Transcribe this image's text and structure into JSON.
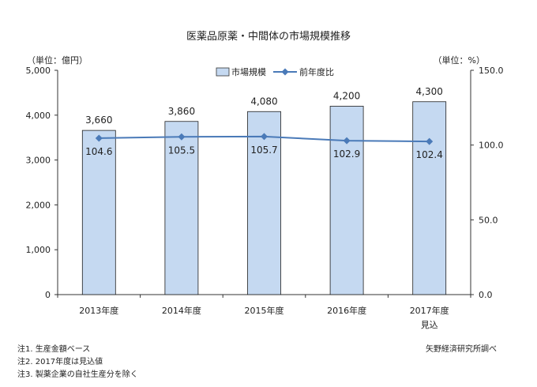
{
  "chart_data": {
    "type": "bar",
    "title": "医薬品原薬・中間体の市場規模推移",
    "left_unit": "（単位：億円）",
    "right_unit": "（単位：%）",
    "categories": [
      "2013年度",
      "2014年度",
      "2015年度",
      "2016年度",
      "2017年度"
    ],
    "category_sublabels": [
      "",
      "",
      "",
      "",
      "見込"
    ],
    "series": [
      {
        "name": "市場規模",
        "type": "bar",
        "axis": "left",
        "color": "#c5d9f1",
        "edge": "#1f1f1f",
        "values": [
          3660,
          3860,
          4080,
          4200,
          4300
        ],
        "labels": [
          "3,660",
          "3,860",
          "4,080",
          "4,200",
          "4,300"
        ]
      },
      {
        "name": "前年度比",
        "type": "line",
        "axis": "right",
        "color": "#4a7ab8",
        "values": [
          104.6,
          105.5,
          105.7,
          102.9,
          102.4
        ],
        "labels": [
          "104.6",
          "105.5",
          "105.7",
          "102.9",
          "102.4"
        ]
      }
    ],
    "y_left": {
      "min": 0,
      "max": 5000,
      "ticks": [
        0,
        1000,
        2000,
        3000,
        4000,
        5000
      ],
      "tick_labels": [
        "0",
        "1,000",
        "2,000",
        "3,000",
        "4,000",
        "5,000"
      ]
    },
    "y_right": {
      "min": 0,
      "max": 150,
      "ticks": [
        0,
        50,
        100,
        150
      ],
      "tick_labels": [
        "0.0",
        "50.0",
        "100.0",
        "150.0"
      ]
    },
    "grid": false,
    "legend_position": "top-center"
  },
  "notes": [
    "注1.  生産金額ベース",
    "注2.  2017年度は見込値",
    "注3.  製薬企業の自社生産分を除く"
  ],
  "source": "矢野経済研究所調べ"
}
